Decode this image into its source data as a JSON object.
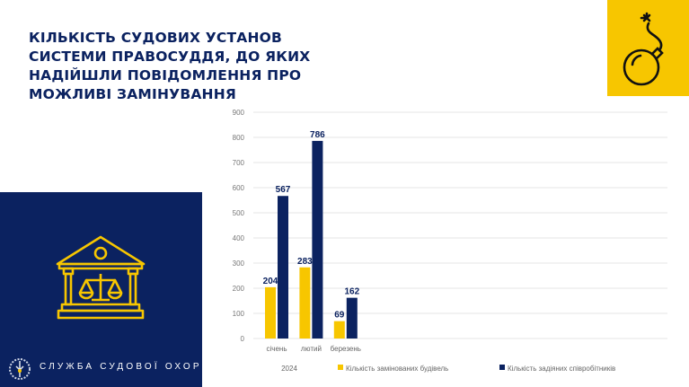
{
  "title": "КІЛЬКІСТЬ СУДОВИХ УСТАНОВ СИСТЕМИ ПРАВОСУДДЯ, ДО ЯКИХ НАДІЙШЛИ ПОВІДОМЛЕННЯ ПРО МОЖЛИВІ ЗАМІНУВАННЯ",
  "organization": "СЛУЖБА СУДОВОЇ ОХОРОНИ",
  "icons": {
    "top_right": "bomb-icon",
    "panel": "courthouse-scales-icon",
    "logo": "service-seal-icon"
  },
  "colors": {
    "navy": "#0b2260",
    "yellow": "#f7c600"
  },
  "chart_data": {
    "type": "bar",
    "categories": [
      "січень",
      "лютий",
      "березень"
    ],
    "group_label": "2024",
    "series": [
      {
        "name": "Кількість замінованих будівель",
        "values": [
          204,
          283,
          69
        ],
        "color": "#f7c600"
      },
      {
        "name": "Кількість задіяних співробітників",
        "values": [
          567,
          786,
          162
        ],
        "color": "#0b2260"
      }
    ],
    "ylim": [
      0,
      900
    ],
    "yticks": [
      0,
      100,
      200,
      300,
      400,
      500,
      600,
      700,
      800,
      900
    ],
    "grid": true,
    "legend": "bottom",
    "data_labels": true
  }
}
